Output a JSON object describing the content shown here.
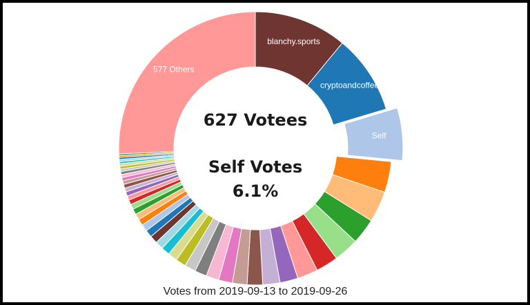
{
  "chart_data": {
    "type": "pie",
    "variant": "donut",
    "center_text": [
      "627 Votees",
      "Self Votes",
      "6.1%"
    ],
    "caption": "Votes from 2019-09-13 to 2019-09-26",
    "slices": [
      {
        "label": "blanchy.sports",
        "value": 10.8,
        "color": "#6f3531",
        "show_label": true
      },
      {
        "label": "cryptoandcoffee",
        "value": 9.2,
        "color": "#1f77b4",
        "show_label": true
      },
      {
        "label": "Self",
        "value": 6.1,
        "color": "#aec7e8",
        "show_label": true,
        "exploded": true
      },
      {
        "label": "",
        "value": 3.6,
        "color": "#ff7f0e",
        "show_label": false
      },
      {
        "label": "",
        "value": 3.6,
        "color": "#ffbb78",
        "show_label": false
      },
      {
        "label": "",
        "value": 3.0,
        "color": "#2ca02c",
        "show_label": false
      },
      {
        "label": "",
        "value": 2.9,
        "color": "#98df8a",
        "show_label": false
      },
      {
        "label": "",
        "value": 2.6,
        "color": "#d62728",
        "show_label": false
      },
      {
        "label": "",
        "value": 2.4,
        "color": "#ff9896",
        "show_label": false
      },
      {
        "label": "",
        "value": 2.1,
        "color": "#9467bd",
        "show_label": false
      },
      {
        "label": "",
        "value": 2.0,
        "color": "#c5b0d5",
        "show_label": false
      },
      {
        "label": "",
        "value": 1.8,
        "color": "#8c564b",
        "show_label": false
      },
      {
        "label": "",
        "value": 1.7,
        "color": "#c49c94",
        "show_label": false
      },
      {
        "label": "",
        "value": 1.6,
        "color": "#e377c2",
        "show_label": false
      },
      {
        "label": "",
        "value": 1.5,
        "color": "#f7b6d2",
        "show_label": false
      },
      {
        "label": "",
        "value": 1.4,
        "color": "#7f7f7f",
        "show_label": false
      },
      {
        "label": "",
        "value": 1.3,
        "color": "#c7c7c7",
        "show_label": false
      },
      {
        "label": "",
        "value": 1.2,
        "color": "#bcbd22",
        "show_label": false
      },
      {
        "label": "",
        "value": 1.1,
        "color": "#dbdb8d",
        "show_label": false
      },
      {
        "label": "",
        "value": 1.0,
        "color": "#17becf",
        "show_label": false
      },
      {
        "label": "",
        "value": 0.95,
        "color": "#9edae5",
        "show_label": false
      },
      {
        "label": "",
        "value": 0.9,
        "color": "#6f3531",
        "show_label": false
      },
      {
        "label": "",
        "value": 0.85,
        "color": "#1f77b4",
        "show_label": false
      },
      {
        "label": "",
        "value": 0.8,
        "color": "#aec7e8",
        "show_label": false
      },
      {
        "label": "",
        "value": 0.75,
        "color": "#ff7f0e",
        "show_label": false
      },
      {
        "label": "",
        "value": 0.7,
        "color": "#ffbb78",
        "show_label": false
      },
      {
        "label": "",
        "value": 0.65,
        "color": "#2ca02c",
        "show_label": false
      },
      {
        "label": "",
        "value": 0.6,
        "color": "#98df8a",
        "show_label": false
      },
      {
        "label": "",
        "value": 0.55,
        "color": "#d62728",
        "show_label": false
      },
      {
        "label": "",
        "value": 0.5,
        "color": "#ff9896",
        "show_label": false
      },
      {
        "label": "",
        "value": 0.5,
        "color": "#9467bd",
        "show_label": false
      },
      {
        "label": "",
        "value": 0.45,
        "color": "#c5b0d5",
        "show_label": false
      },
      {
        "label": "",
        "value": 0.45,
        "color": "#8c564b",
        "show_label": false
      },
      {
        "label": "",
        "value": 0.4,
        "color": "#c49c94",
        "show_label": false
      },
      {
        "label": "",
        "value": 0.4,
        "color": "#e377c2",
        "show_label": false
      },
      {
        "label": "",
        "value": 0.35,
        "color": "#f7b6d2",
        "show_label": false
      },
      {
        "label": "",
        "value": 0.35,
        "color": "#7f7f7f",
        "show_label": false
      },
      {
        "label": "",
        "value": 0.3,
        "color": "#c7c7c7",
        "show_label": false
      },
      {
        "label": "",
        "value": 0.3,
        "color": "#bcbd22",
        "show_label": false
      },
      {
        "label": "",
        "value": 0.3,
        "color": "#dbdb8d",
        "show_label": false
      },
      {
        "label": "",
        "value": 0.25,
        "color": "#17becf",
        "show_label": false
      },
      {
        "label": "",
        "value": 0.25,
        "color": "#9edae5",
        "show_label": false
      },
      {
        "label": "",
        "value": 0.25,
        "color": "#1f77b4",
        "show_label": false
      },
      {
        "label": "",
        "value": 0.2,
        "color": "#ff7f0e",
        "show_label": false
      },
      {
        "label": "",
        "value": 0.2,
        "color": "#2ca02c",
        "show_label": false
      },
      {
        "label": "577 Others",
        "value": 25.2,
        "color": "#ff9896",
        "show_label": true
      }
    ]
  }
}
